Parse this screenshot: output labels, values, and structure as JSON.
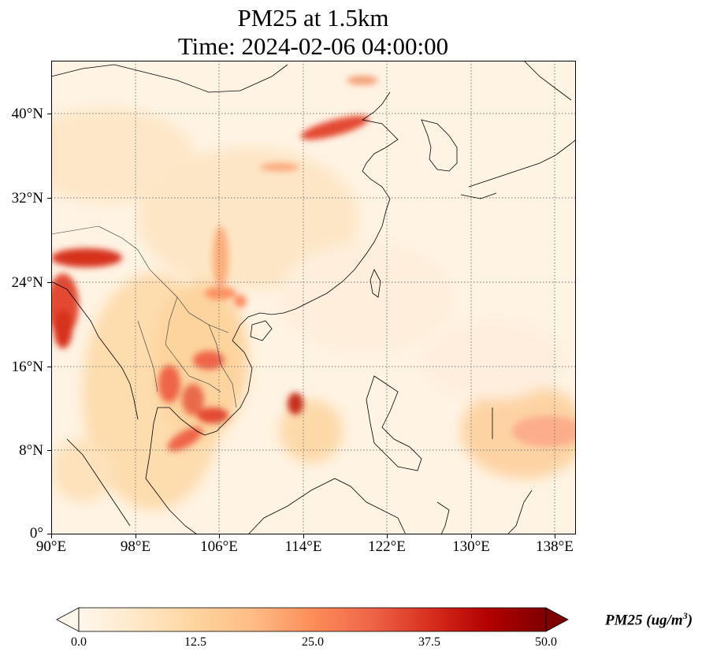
{
  "title": {
    "line1": "PM25 at 1.5km",
    "line2": "Time: 2024-02-06 04:00:00"
  },
  "axes": {
    "x_ticks": [
      "90°E",
      "98°E",
      "106°E",
      "114°E",
      "122°E",
      "130°E",
      "138°E"
    ],
    "y_ticks": [
      "40°N",
      "32°N",
      "24°N",
      "16°N",
      "8°N",
      "0°"
    ]
  },
  "colorbar": {
    "label": "PM25 (ug/m",
    "label_sup": "3",
    "label_close": ")",
    "ticks": [
      "0.0",
      "12.5",
      "25.0",
      "37.5",
      "50.0"
    ],
    "colormap": "OrRd",
    "extend": "both"
  },
  "map": {
    "projection": "PlateCarree",
    "lon_range": [
      90,
      140
    ],
    "lat_range": [
      0,
      45
    ],
    "gridlines": "dotted grey",
    "coastlines": true,
    "borders": true
  }
}
